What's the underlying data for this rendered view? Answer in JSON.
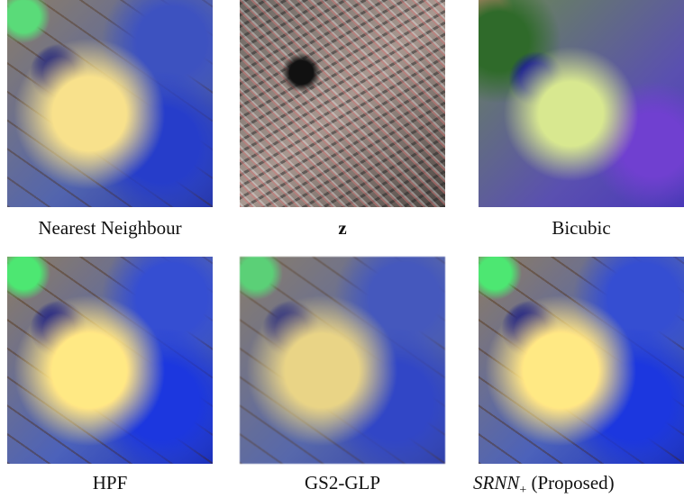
{
  "figure": {
    "panels": [
      {
        "caption": "Nearest Neighbour"
      },
      {
        "caption": "z"
      },
      {
        "caption": "Bicubic"
      },
      {
        "caption": "HPF"
      },
      {
        "caption": "GS2-GLP"
      },
      {
        "caption": {
          "math": "SRNN",
          "sub": "+",
          "text": "(Proposed)"
        }
      }
    ]
  }
}
